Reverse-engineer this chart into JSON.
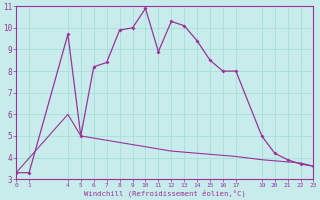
{
  "xlabel": "Windchill (Refroidissement éolien,°C)",
  "background_color": "#c8ecec",
  "line_color": "#993399",
  "grid_color": "#aadddd",
  "x_values": [
    0,
    1,
    4,
    5,
    6,
    7,
    8,
    9,
    10,
    11,
    12,
    13,
    14,
    15,
    16,
    17,
    19,
    20,
    21,
    22,
    23
  ],
  "y_main": [
    3.3,
    3.3,
    9.7,
    5.0,
    8.2,
    8.4,
    9.9,
    10.0,
    10.9,
    8.9,
    10.3,
    10.1,
    9.4,
    8.5,
    8.0,
    8.0,
    5.0,
    4.2,
    3.9,
    3.7,
    3.6
  ],
  "x_ref": [
    0,
    4,
    5,
    6,
    7,
    8,
    9,
    10,
    11,
    12,
    13,
    14,
    15,
    16,
    17,
    19,
    20,
    21,
    22,
    23
  ],
  "y_ref": [
    3.3,
    6.0,
    5.0,
    4.9,
    4.8,
    4.7,
    4.6,
    4.5,
    4.4,
    4.3,
    4.25,
    4.2,
    4.15,
    4.1,
    4.05,
    3.9,
    3.85,
    3.8,
    3.75,
    3.6
  ],
  "xlim": [
    0,
    23
  ],
  "ylim": [
    3,
    11
  ],
  "xtick_positions": [
    0,
    1,
    4,
    5,
    6,
    7,
    8,
    9,
    10,
    11,
    12,
    13,
    14,
    15,
    16,
    17,
    19,
    20,
    21,
    22,
    23
  ],
  "xtick_labels": [
    "0",
    "1",
    "4",
    "5",
    "6",
    "7",
    "8",
    "9",
    "10",
    "11",
    "12",
    "13",
    "14",
    "15",
    "16",
    "17",
    "19",
    "20",
    "21",
    "22",
    "23"
  ],
  "yticks": [
    3,
    4,
    5,
    6,
    7,
    8,
    9,
    10,
    11
  ]
}
